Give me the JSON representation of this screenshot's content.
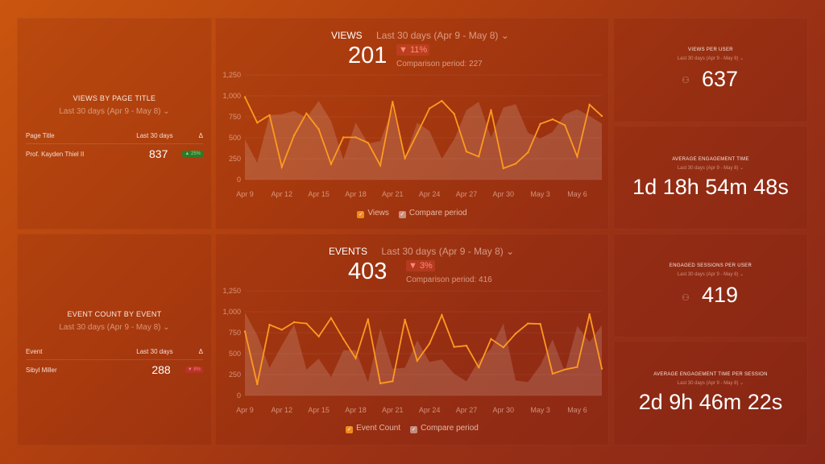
{
  "date_range": "Last 30 days (Apr 9 - May 8)",
  "colors": {
    "primary_line": "#ff9a1f",
    "compare_fill": "#ffffff",
    "negative": "#e04a3a",
    "positive": "#2e9a3c"
  },
  "views_by_page_title": {
    "title": "VIEWS BY PAGE TITLE",
    "columns": [
      "Page Title",
      "Last 30 days",
      "Δ"
    ],
    "rows": [
      {
        "name": "Prof. Kayden Thiel II",
        "value": "837",
        "delta": "▲ 25%",
        "direction": "up"
      }
    ]
  },
  "event_count_by_event": {
    "title": "EVENT COUNT BY EVENT",
    "columns": [
      "Event",
      "Last 30 days",
      "Δ"
    ],
    "rows": [
      {
        "name": "Sibyl Miller",
        "value": "288",
        "delta": "▼ 8%",
        "direction": "down"
      }
    ]
  },
  "views_per_user": {
    "title": "VIEWS PER USER",
    "value": "637",
    "icon": "user-icon"
  },
  "avg_engagement_time": {
    "title": "AVERAGE ENGAGEMENT TIME",
    "value": "1d 18h 54m 48s"
  },
  "engaged_sessions_per_user": {
    "title": "ENGAGED SESSIONS PER USER",
    "value": "419",
    "icon": "user-icon"
  },
  "avg_engagement_time_per_session": {
    "title": "AVERAGE ENGAGEMENT TIME PER SESSION",
    "value": "2d 9h 46m 22s"
  },
  "chart_data": [
    {
      "type": "line",
      "title": "VIEWS",
      "total": "201",
      "delta": "▼ 11%",
      "comparison": "Comparison period: 227",
      "x_ticks": [
        "Apr 9",
        "Apr 12",
        "Apr 15",
        "Apr 18",
        "Apr 21",
        "Apr 24",
        "Apr 27",
        "Apr 30",
        "May 3",
        "May 6"
      ],
      "y_ticks": [
        "0",
        "250",
        "500",
        "750",
        "1,000",
        "1,250"
      ],
      "ylim": [
        0,
        1250
      ],
      "x_range": [
        "Apr 9",
        "May 8"
      ],
      "legend": [
        "Views",
        "Compare period"
      ],
      "series": [
        {
          "name": "Views",
          "values": [
            985,
            680,
            770,
            150,
            530,
            790,
            600,
            185,
            505,
            505,
            440,
            170,
            930,
            255,
            550,
            850,
            940,
            785,
            335,
            275,
            830,
            135,
            190,
            325,
            665,
            720,
            650,
            275,
            895,
            760
          ]
        },
        {
          "name": "Compare period",
          "values": [
            480,
            200,
            770,
            780,
            820,
            740,
            940,
            700,
            240,
            680,
            430,
            460,
            850,
            260,
            680,
            580,
            250,
            480,
            830,
            930,
            500,
            860,
            900,
            560,
            490,
            570,
            780,
            840,
            760,
            670
          ]
        }
      ]
    },
    {
      "type": "line",
      "title": "EVENTS",
      "total": "403",
      "delta": "▼ 3%",
      "comparison": "Comparison period: 416",
      "x_ticks": [
        "Apr 9",
        "Apr 12",
        "Apr 15",
        "Apr 18",
        "Apr 21",
        "Apr 24",
        "Apr 27",
        "Apr 30",
        "May 3",
        "May 6"
      ],
      "y_ticks": [
        "0",
        "250",
        "500",
        "750",
        "1,000",
        "1,250"
      ],
      "ylim": [
        0,
        1250
      ],
      "x_range": [
        "Apr 9",
        "May 8"
      ],
      "legend": [
        "Event Count",
        "Compare period"
      ],
      "series": [
        {
          "name": "Event Count",
          "values": [
            765,
            135,
            845,
            785,
            875,
            860,
            705,
            925,
            675,
            445,
            910,
            145,
            170,
            905,
            415,
            620,
            960,
            580,
            595,
            335,
            675,
            575,
            740,
            860,
            855,
            260,
            310,
            340,
            970,
            320
          ]
        },
        {
          "name": "Compare period",
          "values": [
            990,
            720,
            330,
            600,
            850,
            310,
            440,
            220,
            540,
            540,
            160,
            800,
            320,
            330,
            660,
            400,
            430,
            260,
            170,
            420,
            560,
            860,
            180,
            160,
            360,
            670,
            280,
            830,
            640,
            840
          ]
        }
      ]
    }
  ]
}
